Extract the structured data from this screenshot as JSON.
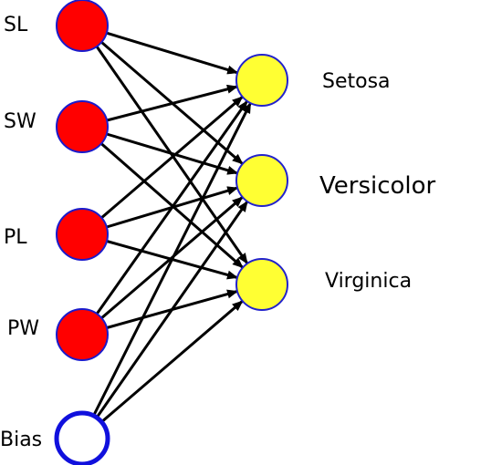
{
  "inputs": [
    {
      "id": "sl",
      "label": "SL",
      "kind": "feature"
    },
    {
      "id": "sw",
      "label": "SW",
      "kind": "feature"
    },
    {
      "id": "pl",
      "label": "PL",
      "kind": "feature"
    },
    {
      "id": "pw",
      "label": "PW",
      "kind": "feature"
    },
    {
      "id": "bias",
      "label": "Bias",
      "kind": "bias"
    }
  ],
  "outputs": [
    {
      "id": "setosa",
      "label": "Setosa"
    },
    {
      "id": "versicolor",
      "label": "Versicolor"
    },
    {
      "id": "virginica",
      "label": "Virginica"
    }
  ],
  "connections": "all-inputs-to-all-outputs",
  "colors": {
    "input_fill": "#ff0000",
    "input_stroke": "#1a1acc",
    "bias_fill": "#ffffff",
    "bias_stroke": "#1010dd",
    "output_fill": "#ffff33",
    "output_stroke": "#2222cc",
    "arrow": "#000000"
  }
}
